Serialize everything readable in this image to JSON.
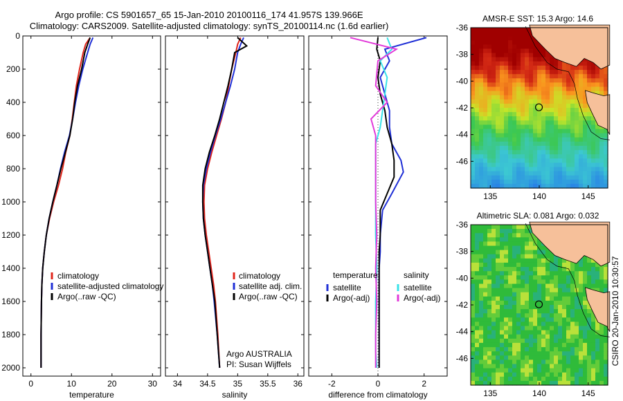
{
  "figure": {
    "title_line1": "Argo profile: CS 5901657_65 15-Jan-2010 20100116_174 41.957S 139.966E",
    "title_line2": "Climatology: CARS2009. Satellite-adjusted climatology: synTS_20100114.nc (1.6d earlier)",
    "side_label": "CSIRO 20-Jan-2010 10:30:57",
    "colors": {
      "climatology": "#e0251b",
      "satellite": "#1f2fd6",
      "argo": "#000000",
      "sat_salinity": "#38e2e8",
      "argo_salinity_adj": "#e23ad9",
      "land": "#f6c09a"
    }
  },
  "chart_data": [
    {
      "type": "line",
      "id": "temperature",
      "xlabel": "temperature",
      "xlim": [
        -2,
        32
      ],
      "ylim": [
        2050,
        0
      ],
      "xticks": [
        0,
        10,
        20,
        30
      ],
      "yticks": [
        0,
        200,
        400,
        600,
        800,
        1000,
        1200,
        1400,
        1600,
        1800,
        2000
      ],
      "legend": {
        "position": "lower-right",
        "entries": [
          "climatology",
          "satellite-adjusted climatology",
          "Argo(..raw -QC)"
        ]
      },
      "series": [
        {
          "name": "climatology",
          "color": "#e0251b",
          "x": [
            14.6,
            13.5,
            12.9,
            12.0,
            11.2,
            10.7,
            10.2,
            9.6,
            8.6,
            7.8,
            6.8,
            5.6,
            4.6,
            3.8,
            3.3,
            2.9,
            2.7,
            2.6,
            2.5,
            2.5
          ],
          "y": [
            10,
            50,
            100,
            200,
            300,
            400,
            500,
            600,
            700,
            800,
            900,
            1000,
            1100,
            1200,
            1300,
            1400,
            1500,
            1600,
            1800,
            2000
          ]
        },
        {
          "name": "satellite-adjusted climatology",
          "color": "#1f2fd6",
          "x": [
            15.3,
            14.6,
            14.0,
            12.8,
            11.8,
            11.0,
            10.3,
            9.5,
            8.3,
            7.3,
            6.4,
            5.4,
            4.5,
            3.8,
            3.3,
            2.9,
            2.7,
            2.6,
            2.5,
            2.5
          ],
          "y": [
            10,
            50,
            100,
            200,
            300,
            400,
            500,
            600,
            700,
            800,
            900,
            1000,
            1100,
            1200,
            1300,
            1400,
            1500,
            1600,
            1800,
            2000
          ]
        },
        {
          "name": "Argo(..raw -QC)",
          "color": "#000000",
          "x": [
            14.6,
            14.0,
            13.3,
            12.5,
            11.5,
            10.8,
            10.3,
            9.6,
            8.5,
            7.4,
            6.4,
            5.4,
            4.5,
            3.8,
            3.3,
            2.9,
            2.7,
            2.6,
            2.5,
            2.5
          ],
          "y": [
            10,
            50,
            100,
            200,
            300,
            400,
            500,
            600,
            700,
            800,
            900,
            1000,
            1100,
            1200,
            1300,
            1400,
            1500,
            1600,
            1800,
            2000
          ]
        }
      ]
    },
    {
      "type": "line",
      "id": "salinity",
      "xlabel": "salinity",
      "xlim": [
        33.8,
        36.1
      ],
      "ylim": [
        2050,
        0
      ],
      "xticks": [
        34,
        34.5,
        35,
        35.5,
        36
      ],
      "xticklabels": [
        "34",
        "34.5",
        "35",
        "35.5",
        "36"
      ],
      "legend": {
        "position": "lower-right",
        "entries": [
          "climatology",
          "satellite adj. clim.",
          "Argo(..raw -QC)"
        ]
      },
      "annotation": [
        "Argo AUSTRALIA",
        "PI: Susan Wijffels"
      ],
      "series": [
        {
          "name": "climatology",
          "color": "#e0251b",
          "x": [
            35.05,
            35.0,
            34.97,
            34.9,
            34.85,
            34.8,
            34.73,
            34.65,
            34.57,
            34.5,
            34.45,
            34.44,
            34.45,
            34.48,
            34.52,
            34.56,
            34.6,
            34.63,
            34.67,
            34.7
          ],
          "y": [
            10,
            50,
            100,
            200,
            300,
            400,
            500,
            600,
            700,
            800,
            900,
            1000,
            1100,
            1200,
            1300,
            1400,
            1500,
            1600,
            1800,
            2000
          ]
        },
        {
          "name": "satellite adj. clim.",
          "color": "#1f2fd6",
          "x": [
            35.1,
            35.05,
            35.0,
            34.95,
            34.88,
            34.8,
            34.72,
            34.63,
            34.55,
            34.48,
            34.43,
            34.42,
            34.43,
            34.46,
            34.5,
            34.54,
            34.58,
            34.61,
            34.66,
            34.7
          ],
          "y": [
            10,
            50,
            100,
            200,
            300,
            400,
            500,
            600,
            700,
            800,
            900,
            1000,
            1100,
            1200,
            1300,
            1400,
            1500,
            1600,
            1800,
            2000
          ]
        },
        {
          "name": "Argo(..raw -QC)",
          "color": "#000000",
          "x": [
            35.0,
            35.15,
            34.95,
            34.9,
            34.84,
            34.77,
            34.7,
            34.62,
            34.53,
            34.46,
            34.42,
            34.42,
            34.43,
            34.46,
            34.5,
            34.54,
            34.58,
            34.62,
            34.66,
            34.7
          ],
          "y": [
            10,
            60,
            100,
            200,
            300,
            400,
            500,
            600,
            700,
            800,
            900,
            1000,
            1100,
            1200,
            1300,
            1400,
            1500,
            1600,
            1800,
            2000
          ]
        }
      ]
    },
    {
      "type": "line",
      "id": "difference",
      "xlabel": "difference from climatology",
      "xlim": [
        -3,
        3
      ],
      "ylim": [
        2050,
        0
      ],
      "xticks": [
        -2,
        0,
        2
      ],
      "legend": {
        "position": "lower-left",
        "entries": [
          "temperature",
          "satellite",
          "Argo(-adj)",
          "salinity",
          "satellite",
          "Argo(-adj)"
        ]
      },
      "series": [
        {
          "name": "temperature satellite",
          "color": "#1f2fd6",
          "x": [
            2.1,
            0.3,
            0.5,
            0.1,
            0.3,
            0.5,
            0.5,
            0.6,
            1.0,
            1.1,
            0.6,
            0.2,
            0.1,
            0.1,
            0.05,
            0.05,
            0.05,
            0.05,
            0.05
          ],
          "y": [
            10,
            80,
            150,
            250,
            350,
            450,
            550,
            650,
            750,
            820,
            950,
            1050,
            1200,
            1300,
            1400,
            1500,
            1600,
            1800,
            2000
          ]
        },
        {
          "name": "temperature Argo(-adj)",
          "color": "#000000",
          "x": [
            0.0,
            -0.05,
            0.1,
            0.0,
            0.1,
            0.3,
            0.4,
            0.6,
            0.7,
            0.7,
            0.4,
            0.1,
            0.1,
            0.05,
            0.05,
            0.05,
            0.05,
            0.05,
            0.05
          ],
          "y": [
            10,
            80,
            150,
            250,
            350,
            450,
            550,
            650,
            750,
            850,
            950,
            1050,
            1200,
            1300,
            1400,
            1500,
            1600,
            1800,
            2000
          ]
        },
        {
          "name": "salinity satellite",
          "color": "#38e2e8",
          "x": [
            0.4,
            0.6,
            0.1,
            0.4,
            0.3,
            0.2,
            0.1,
            -0.1,
            -0.1,
            -0.1,
            -0.1,
            -0.1,
            -0.05,
            -0.1,
            -0.1,
            -0.1,
            -0.05
          ],
          "y": [
            10,
            80,
            150,
            250,
            350,
            450,
            550,
            650,
            750,
            850,
            1000,
            1200,
            1400,
            1600,
            1800,
            1900,
            2000
          ]
        },
        {
          "name": "salinity Argo(-adj)",
          "color": "#e23ad9",
          "x": [
            -1.2,
            0.8,
            0.0,
            -0.1,
            0.4,
            -0.3,
            -0.1,
            -0.1,
            -0.1,
            -0.1,
            -0.1,
            -0.05,
            -0.1,
            -0.05,
            -0.1,
            -0.1
          ],
          "y": [
            10,
            80,
            150,
            300,
            400,
            500,
            600,
            700,
            800,
            900,
            1000,
            1200,
            1400,
            1600,
            1800,
            2000
          ]
        }
      ]
    },
    {
      "type": "heatmap",
      "id": "sst-map",
      "title": "AMSR-E SST: 15.3 Argo: 14.6",
      "xlim": [
        133,
        147
      ],
      "ylim": [
        -48,
        -36
      ],
      "xticks": [
        135,
        140,
        145
      ],
      "yticks": [
        -36,
        -38,
        -40,
        -42,
        -44,
        -46
      ],
      "argo_position": [
        139.966,
        -41.957
      ]
    },
    {
      "type": "heatmap",
      "id": "sla-map",
      "title": "Altimetric SLA: 0.081 Argo: 0.032",
      "xlim": [
        133,
        147
      ],
      "ylim": [
        -48,
        -36
      ],
      "xticks": [
        135,
        140,
        145
      ],
      "yticks": [
        -36,
        -38,
        -40,
        -42,
        -44,
        -46
      ],
      "argo_position": [
        139.966,
        -41.957
      ]
    }
  ]
}
